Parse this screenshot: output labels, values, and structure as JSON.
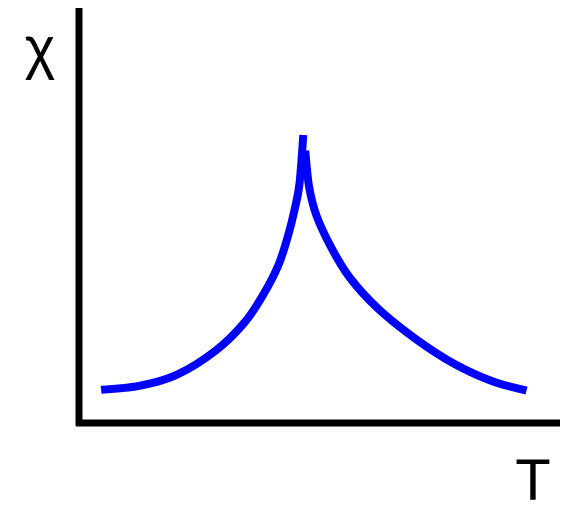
{
  "chart_data": {
    "type": "line",
    "xlabel": "T",
    "ylabel": "χ",
    "grid": false,
    "legend": "none",
    "x_ticks": [],
    "y_ticks": [],
    "xlim": [
      0,
      1
    ],
    "ylim": [
      0,
      1
    ],
    "series": [
      {
        "color": "#0000ff",
        "points": [
          [
            0.04,
            0.106
          ],
          [
            0.12,
            0.12
          ],
          [
            0.2,
            0.16
          ],
          [
            0.28,
            0.244
          ],
          [
            0.34,
            0.342
          ],
          [
            0.38,
            0.442
          ],
          [
            0.41,
            0.54
          ],
          [
            0.43,
            0.64
          ],
          [
            0.445,
            0.74
          ],
          [
            0.455,
            0.83
          ],
          [
            0.463,
            1.0
          ]
        ]
      },
      {
        "color": "#0000ff",
        "points": [
          [
            0.467,
            0.945
          ],
          [
            0.475,
            0.82
          ],
          [
            0.49,
            0.72
          ],
          [
            0.52,
            0.61
          ],
          [
            0.56,
            0.5
          ],
          [
            0.62,
            0.39
          ],
          [
            0.7,
            0.282
          ],
          [
            0.78,
            0.196
          ],
          [
            0.86,
            0.135
          ],
          [
            0.93,
            0.103
          ]
        ]
      }
    ]
  }
}
